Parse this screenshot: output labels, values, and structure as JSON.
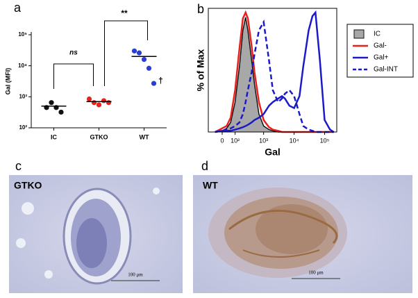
{
  "chart_data": [
    {
      "type": "dot",
      "panel": "a",
      "ylabel": "Gal (MFI)",
      "yscale": "log",
      "categories": [
        "IC",
        "GTKO",
        "WT"
      ],
      "values": [
        [
          450,
          650,
          450,
          320
        ],
        [
          850,
          650,
          550,
          750,
          650
        ],
        [
          30000,
          26000,
          16000,
          8300,
          2700
        ]
      ],
      "medians": [
        500,
        700,
        20000
      ],
      "colors": [
        "#111111",
        "#e8211e",
        "#2a3fd0"
      ],
      "ylim": [
        100,
        100000
      ],
      "yticks": [
        {
          "value": 100,
          "label": "10²"
        },
        {
          "value": 1000,
          "label": "10³"
        },
        {
          "value": 10000,
          "label": "10⁴"
        },
        {
          "value": 100000,
          "label": "10⁵"
        }
      ],
      "annotations": [
        "ns",
        "**",
        "†"
      ]
    },
    {
      "type": "line",
      "panel": "b",
      "ylabel": "% of Max",
      "xlabel": "Gal",
      "xscale": "biexponential",
      "legend": "outside-right",
      "x": [
        -50,
        0,
        30,
        60,
        100,
        150,
        200,
        250,
        300,
        400,
        500,
        700,
        1000,
        1500,
        2000,
        3000,
        4000,
        5000,
        7000,
        10000,
        15000,
        20000,
        30000,
        40000,
        50000,
        70000,
        100000,
        150000,
        200000
      ],
      "xlim": [
        -110,
        250000
      ],
      "ylim": [
        0,
        100
      ],
      "xticks": [
        0,
        {
          "value": 100,
          "label": "10²"
        },
        {
          "value": 1000,
          "label": "10³"
        },
        {
          "value": 10000,
          "label": "10⁴"
        },
        {
          "value": 100000,
          "label": "10⁵"
        }
      ],
      "series": [
        {
          "name": "IC",
          "color": "#111111",
          "fill": "#a8a8a8",
          "values": [
            0,
            1,
            3,
            8,
            25,
            55,
            85,
            96,
            85,
            60,
            40,
            15,
            5,
            2,
            1,
            0,
            0,
            0,
            0,
            0,
            0,
            0,
            0,
            0,
            0,
            0,
            0,
            0,
            0
          ]
        },
        {
          "name": "Gal-",
          "color": "#e8211e",
          "values": [
            0,
            3,
            5,
            12,
            35,
            70,
            95,
            100,
            95,
            72,
            50,
            25,
            10,
            4,
            2,
            1,
            0,
            0,
            0,
            0,
            0,
            0,
            0,
            0,
            0,
            0,
            0,
            0,
            0
          ]
        },
        {
          "name": "Gal+",
          "color": "#1a1ac8",
          "values": [
            0,
            1,
            1,
            1,
            2,
            3,
            4,
            5,
            6,
            8,
            10,
            12,
            15,
            22,
            25,
            28,
            30,
            28,
            22,
            20,
            30,
            55,
            85,
            97,
            100,
            60,
            10,
            2,
            0
          ]
        },
        {
          "name": "Gal-INT",
          "color": "#1a1ac8",
          "dash": true,
          "values": [
            0,
            1,
            2,
            3,
            5,
            8,
            15,
            25,
            35,
            50,
            65,
            85,
            92,
            60,
            35,
            25,
            28,
            32,
            35,
            30,
            15,
            5,
            2,
            1,
            0,
            0,
            0,
            0,
            0
          ]
        }
      ]
    }
  ],
  "images": [
    {
      "panel": "c",
      "title": "GTKO",
      "scale": "100 μm"
    },
    {
      "panel": "d",
      "title": "WT",
      "scale": "100 μm"
    }
  ]
}
